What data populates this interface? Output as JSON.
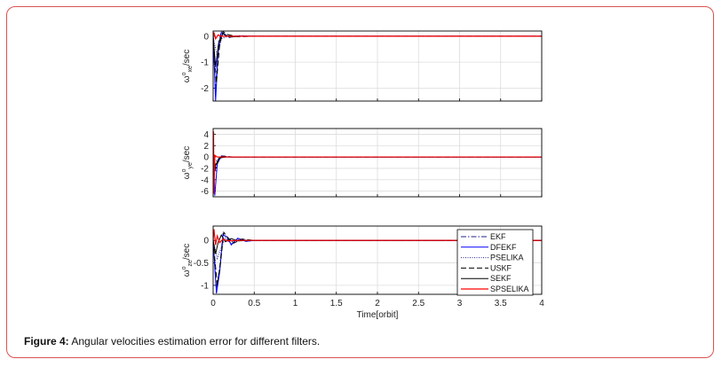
{
  "figure": {
    "label": "Figure 4:",
    "text": " Angular velocities estimation error for different filters."
  },
  "colors": {
    "frame": "#d9534f",
    "red": "#ff0000",
    "blue": "#0000ff",
    "black": "#000000",
    "navy": "#1f1f8f"
  },
  "chart_data": [
    {
      "type": "line",
      "ylabel": "ω^o_xe /sec",
      "ylabel_parts": {
        "base": "ω",
        "sup": "o",
        "sub": "xe",
        "rest": "/sec"
      },
      "xlim": [
        0,
        4
      ],
      "ylim": [
        -2.5,
        0.2
      ],
      "yticks": [
        0,
        -1,
        -2
      ],
      "grid": true,
      "series": [
        {
          "name": "EKF",
          "x": [
            0,
            0.03,
            0.06,
            0.1,
            0.15,
            0.2,
            0.3,
            0.5,
            4
          ],
          "y": [
            0,
            -2.2,
            -0.4,
            0.2,
            0.05,
            -0.05,
            0.02,
            0,
            0
          ]
        },
        {
          "name": "DFEKF",
          "x": [
            0,
            0.03,
            0.06,
            0.1,
            0.15,
            0.2,
            0.3,
            0.5,
            4
          ],
          "y": [
            0,
            -2.5,
            -0.6,
            0.15,
            0.03,
            -0.04,
            0.01,
            0,
            0
          ]
        },
        {
          "name": "PSELIKA",
          "x": [
            0,
            0.05,
            0.1,
            0.2,
            0.4,
            4
          ],
          "y": [
            0,
            -0.8,
            -0.1,
            0.02,
            0,
            0
          ]
        },
        {
          "name": "USKF",
          "x": [
            0,
            0.04,
            0.08,
            0.12,
            0.18,
            0.3,
            0.5,
            4
          ],
          "y": [
            0,
            -1.8,
            -0.3,
            0.18,
            0.06,
            -0.02,
            0,
            0
          ]
        },
        {
          "name": "SEKF",
          "x": [
            0,
            0.03,
            0.07,
            0.12,
            0.2,
            0.35,
            4
          ],
          "y": [
            0,
            -1.2,
            -0.2,
            0.1,
            -0.03,
            0,
            0
          ]
        },
        {
          "name": "SPSELIKA",
          "x": [
            0,
            0.01,
            0.03,
            0.06,
            0.1,
            0.2,
            4
          ],
          "y": [
            0,
            0.15,
            -0.1,
            0.05,
            0,
            0,
            0
          ]
        }
      ]
    },
    {
      "type": "line",
      "ylabel": "ω^o_ye /sec",
      "ylabel_parts": {
        "base": "ω",
        "sup": "o",
        "sub": "ye",
        "rest": "/sec"
      },
      "xlim": [
        0,
        4
      ],
      "ylim": [
        -7,
        5
      ],
      "yticks": [
        4,
        2,
        0,
        -2,
        -4,
        -6
      ],
      "grid": true,
      "series": [
        {
          "name": "EKF",
          "x": [
            0,
            0.03,
            0.06,
            0.1,
            0.2,
            4
          ],
          "y": [
            0,
            -2.5,
            -0.6,
            0.2,
            0,
            0
          ]
        },
        {
          "name": "DFEKF",
          "x": [
            0,
            0.02,
            0.05,
            0.1,
            0.2,
            4
          ],
          "y": [
            0,
            -6.8,
            -1.2,
            0.1,
            0,
            0
          ]
        },
        {
          "name": "PSELIKA",
          "x": [
            0,
            0.05,
            0.1,
            0.2,
            4
          ],
          "y": [
            0,
            -0.8,
            -0.1,
            0,
            0
          ]
        },
        {
          "name": "USKF",
          "x": [
            0,
            0.03,
            0.07,
            0.12,
            0.25,
            4
          ],
          "y": [
            0,
            -2,
            -0.4,
            0.15,
            0,
            0
          ]
        },
        {
          "name": "SEKF",
          "x": [
            0,
            0.03,
            0.07,
            0.15,
            4
          ],
          "y": [
            0,
            -1.5,
            -0.2,
            0,
            0
          ]
        },
        {
          "name": "SPSELIKA",
          "x": [
            0,
            0.005,
            0.01,
            0.02,
            0.05,
            4
          ],
          "y": [
            0,
            4.5,
            -6.5,
            0.3,
            0,
            0
          ]
        }
      ]
    },
    {
      "type": "line",
      "ylabel": "ω^o_ze /sec",
      "ylabel_parts": {
        "base": "ω",
        "sup": "o",
        "sub": "ze",
        "rest": "/sec"
      },
      "xlim": [
        0,
        4
      ],
      "ylim": [
        -1.2,
        0.32
      ],
      "yticks": [
        0,
        -0.5,
        -1
      ],
      "xticks": [
        0,
        0.5,
        1,
        1.5,
        2,
        2.5,
        3,
        3.5,
        4
      ],
      "xtick_labels": [
        "0",
        "0.5",
        "1",
        "1.5",
        "2",
        "2.5",
        "3",
        "3.5",
        "4"
      ],
      "xlabel": "Time[orbit]",
      "grid": true,
      "legend": "top-right",
      "series": [
        {
          "name": "EKF",
          "x": [
            0,
            0.04,
            0.08,
            0.12,
            0.17,
            0.22,
            0.3,
            0.4,
            0.5,
            4
          ],
          "y": [
            0,
            -1.1,
            -0.6,
            0.15,
            0.05,
            -0.08,
            0.04,
            -0.02,
            0,
            0
          ]
        },
        {
          "name": "DFEKF",
          "x": [
            0,
            0.04,
            0.08,
            0.12,
            0.17,
            0.22,
            0.3,
            0.4,
            0.5,
            4
          ],
          "y": [
            0,
            -1.18,
            -0.7,
            0.12,
            0.08,
            -0.1,
            0.05,
            -0.02,
            0,
            0
          ]
        },
        {
          "name": "PSELIKA",
          "x": [
            0,
            0.05,
            0.1,
            0.15,
            0.2,
            0.3,
            0.5,
            4
          ],
          "y": [
            0,
            -0.4,
            -0.15,
            0.05,
            -0.05,
            0.02,
            0,
            0
          ]
        },
        {
          "name": "USKF",
          "x": [
            0,
            0.05,
            0.09,
            0.13,
            0.18,
            0.25,
            0.35,
            0.5,
            4
          ],
          "y": [
            0,
            -1.0,
            -0.5,
            0.18,
            0.06,
            -0.06,
            0.03,
            0,
            0
          ]
        },
        {
          "name": "SEKF",
          "x": [
            0,
            0.03,
            0.06,
            0.1,
            0.15,
            0.22,
            0.3,
            0.45,
            4
          ],
          "y": [
            0,
            -0.3,
            -0.05,
            0.12,
            -0.03,
            0.04,
            -0.01,
            0,
            0
          ]
        },
        {
          "name": "SPSELIKA",
          "x": [
            0,
            0.01,
            0.03,
            0.05,
            0.08,
            0.12,
            0.18,
            0.3,
            4
          ],
          "y": [
            0,
            0.25,
            -0.1,
            0.1,
            -0.05,
            0.03,
            -0.01,
            0,
            0
          ]
        }
      ]
    }
  ],
  "legend_entries": [
    "EKF",
    "DFEKF",
    "PSELIKA",
    "USKF",
    "SEKF",
    "SPSELIKA"
  ]
}
